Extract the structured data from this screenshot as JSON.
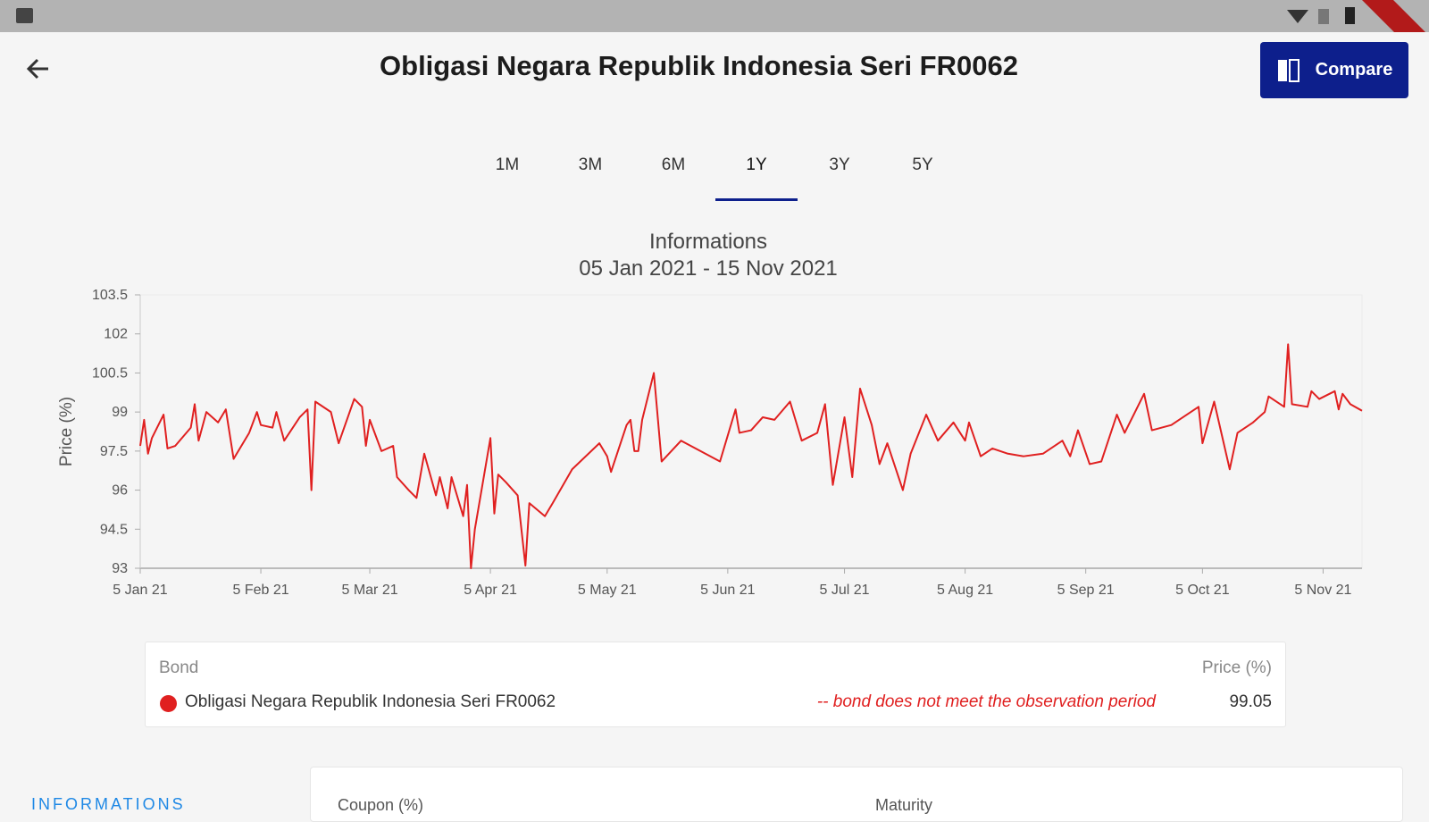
{
  "app_bar": {
    "title": "Obligasi Negara Republik Indonesia Seri FR0062",
    "compare_button": "Compare"
  },
  "tabs": {
    "items": [
      "1M",
      "3M",
      "6M",
      "1Y",
      "3Y",
      "5Y"
    ],
    "selected_index": 3
  },
  "chart_data": {
    "type": "line",
    "title": "Informations",
    "subtitle": "05 Jan 2021 - 15 Nov 2021",
    "y_label": "Price (%)",
    "x": [
      "2021-01-05",
      "2021-01-06",
      "2021-01-07",
      "2021-01-08",
      "2021-01-11",
      "2021-01-12",
      "2021-01-14",
      "2021-01-18",
      "2021-01-19",
      "2021-01-20",
      "2021-01-22",
      "2021-01-25",
      "2021-01-27",
      "2021-01-29",
      "2021-02-02",
      "2021-02-04",
      "2021-02-05",
      "2021-02-08",
      "2021-02-09",
      "2021-02-11",
      "2021-02-15",
      "2021-02-17",
      "2021-02-18",
      "2021-02-19",
      "2021-02-23",
      "2021-02-25",
      "2021-03-01",
      "2021-03-03",
      "2021-03-04",
      "2021-03-05",
      "2021-03-08",
      "2021-03-11",
      "2021-03-12",
      "2021-03-15",
      "2021-03-17",
      "2021-03-19",
      "2021-03-22",
      "2021-03-23",
      "2021-03-25",
      "2021-03-26",
      "2021-03-29",
      "2021-03-30",
      "2021-03-31",
      "2021-04-01",
      "2021-04-05",
      "2021-04-06",
      "2021-04-07",
      "2021-04-09",
      "2021-04-12",
      "2021-04-14",
      "2021-04-15",
      "2021-04-19",
      "2021-04-21",
      "2021-04-26",
      "2021-05-03",
      "2021-05-05",
      "2021-05-06",
      "2021-05-10",
      "2021-05-11",
      "2021-05-12",
      "2021-05-13",
      "2021-05-14",
      "2021-05-17",
      "2021-05-19",
      "2021-05-24",
      "2021-06-03",
      "2021-06-07",
      "2021-06-08",
      "2021-06-11",
      "2021-06-14",
      "2021-06-17",
      "2021-06-21",
      "2021-06-24",
      "2021-06-28",
      "2021-06-30",
      "2021-07-02",
      "2021-07-05",
      "2021-07-07",
      "2021-07-09",
      "2021-07-12",
      "2021-07-14",
      "2021-07-16",
      "2021-07-20",
      "2021-07-22",
      "2021-07-26",
      "2021-07-29",
      "2021-08-02",
      "2021-08-05",
      "2021-08-06",
      "2021-08-09",
      "2021-08-12",
      "2021-08-16",
      "2021-08-20",
      "2021-08-25",
      "2021-08-30",
      "2021-09-01",
      "2021-09-03",
      "2021-09-06",
      "2021-09-09",
      "2021-09-13",
      "2021-09-15",
      "2021-09-20",
      "2021-09-22",
      "2021-09-27",
      "2021-09-30",
      "2021-10-04",
      "2021-10-05",
      "2021-10-08",
      "2021-10-12",
      "2021-10-14",
      "2021-10-18",
      "2021-10-21",
      "2021-10-22",
      "2021-10-26",
      "2021-10-27",
      "2021-10-28",
      "2021-11-01",
      "2021-11-02",
      "2021-11-04",
      "2021-11-08",
      "2021-11-09",
      "2021-11-10",
      "2021-11-12",
      "2021-11-15"
    ],
    "series": [
      {
        "name": "Obligasi Negara Republik Indonesia Seri FR0062",
        "color": "#e02020",
        "values": [
          97.7,
          98.7,
          97.4,
          98.0,
          98.9,
          97.6,
          97.7,
          98.4,
          99.3,
          97.9,
          99.0,
          98.6,
          99.1,
          97.2,
          98.2,
          99.0,
          98.5,
          98.4,
          99.0,
          97.9,
          98.8,
          99.1,
          96.0,
          99.4,
          99.0,
          97.8,
          99.5,
          99.2,
          97.7,
          98.7,
          97.5,
          97.7,
          96.5,
          96.0,
          95.7,
          97.4,
          95.8,
          96.5,
          95.3,
          96.5,
          95.0,
          96.2,
          93.0,
          94.5,
          98.0,
          95.1,
          96.6,
          96.3,
          95.8,
          93.1,
          95.5,
          95.0,
          95.5,
          96.8,
          97.8,
          97.3,
          96.7,
          98.5,
          98.7,
          97.5,
          97.5,
          98.7,
          100.5,
          97.1,
          97.9,
          97.1,
          99.1,
          98.2,
          98.3,
          98.8,
          98.7,
          99.4,
          97.9,
          98.2,
          99.3,
          96.2,
          98.8,
          96.5,
          99.9,
          98.5,
          97.0,
          97.8,
          96.0,
          97.4,
          98.9,
          97.9,
          98.6,
          97.9,
          98.6,
          97.3,
          97.6,
          97.4,
          97.3,
          97.4,
          97.9,
          97.3,
          98.3,
          97.0,
          97.1,
          98.9,
          98.2,
          99.7,
          98.3,
          98.5,
          98.8,
          99.2,
          97.8,
          99.4,
          96.8,
          98.2,
          98.6,
          99.0,
          99.6,
          99.2,
          101.6,
          99.3,
          99.2,
          99.8,
          99.5,
          99.8,
          99.1,
          99.7,
          99.3,
          99.05
        ]
      }
    ],
    "xlim": [
      "2021-01-05",
      "2021-11-15"
    ],
    "xticks": [
      {
        "value": "2021-01-05",
        "label": "5 Jan 21"
      },
      {
        "value": "2021-02-05",
        "label": "5 Feb 21"
      },
      {
        "value": "2021-03-05",
        "label": "5 Mar 21"
      },
      {
        "value": "2021-04-05",
        "label": "5 Apr 21"
      },
      {
        "value": "2021-05-05",
        "label": "5 May 21"
      },
      {
        "value": "2021-06-05",
        "label": "5 Jun 21"
      },
      {
        "value": "2021-07-05",
        "label": "5 Jul 21"
      },
      {
        "value": "2021-08-05",
        "label": "5 Aug 21"
      },
      {
        "value": "2021-09-05",
        "label": "5 Sep 21"
      },
      {
        "value": "2021-10-05",
        "label": "5 Oct 21"
      },
      {
        "value": "2021-11-05",
        "label": "5 Nov 21"
      }
    ],
    "ylim": [
      93,
      103.5
    ],
    "yticks": [
      93,
      94.5,
      96,
      97.5,
      99,
      100.5,
      102,
      103.5
    ],
    "grid": false
  },
  "legend_table": {
    "headers": [
      "Bond",
      "Price (%)"
    ],
    "note": "-- bond does not meet the observation period",
    "value": 99.05
  },
  "info_section": {
    "heading": "INFORMATIONS",
    "fields": [
      "Coupon (%)",
      "Maturity"
    ]
  }
}
